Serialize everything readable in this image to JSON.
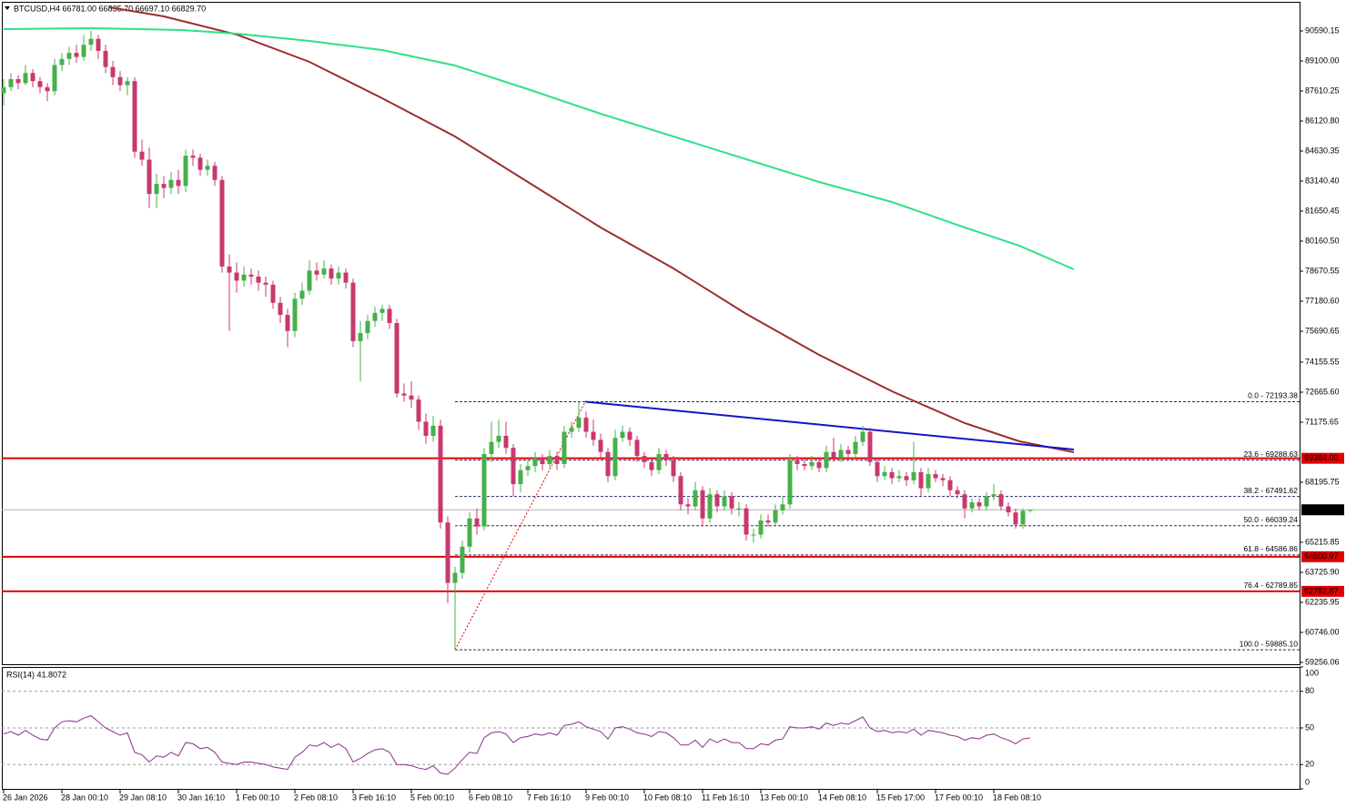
{
  "chart_data": [
    {
      "type": "candlestick",
      "title": "BTCUSD,H4  66781.00 66835.70 66697.10 66829.70",
      "up_color": "#46b04a",
      "down_color": "#c8386f",
      "xlim": [
        -0.25,
        178
      ],
      "ylim": [
        59166,
        91990
      ],
      "xticks": [
        {
          "value": 0,
          "label": "26 Jan 2026"
        },
        {
          "value": 8,
          "label": "28 Jan 00:10"
        },
        {
          "value": 16,
          "label": "29 Jan 08:10"
        },
        {
          "value": 24,
          "label": "30 Jan 16:10"
        },
        {
          "value": 32,
          "label": "1 Feb 00:10"
        },
        {
          "value": 40,
          "label": "2 Feb 08:10"
        },
        {
          "value": 48,
          "label": "3 Feb 16:10"
        },
        {
          "value": 56,
          "label": "5 Feb 00:10"
        },
        {
          "value": 64,
          "label": "6 Feb 08:10"
        },
        {
          "value": 72,
          "label": "7 Feb 16:10"
        },
        {
          "value": 80,
          "label": "9 Feb 00:10"
        },
        {
          "value": 88,
          "label": "10 Feb 08:10"
        },
        {
          "value": 96,
          "label": "11 Feb 16:10"
        },
        {
          "value": 104,
          "label": "13 Feb 00:10"
        },
        {
          "value": 112,
          "label": "14 Feb 08:10"
        },
        {
          "value": 120,
          "label": "15 Feb 17:00"
        },
        {
          "value": 128,
          "label": "17 Feb 00:10"
        },
        {
          "value": 136,
          "label": "18 Feb 08:10"
        }
      ],
      "yticks": [
        90590.15,
        {
          "value": 89100,
          "label": "89100.00"
        },
        87610.25,
        {
          "value": 86120.8,
          "label": "86120.80"
        },
        84630.35,
        {
          "value": 83140.4,
          "label": "83140.40"
        },
        81650.45,
        {
          "value": 80160.5,
          "label": "80160.50"
        },
        78670.55,
        {
          "value": 77180.6,
          "label": "77180.60"
        },
        75690.65,
        74155.55,
        {
          "value": 72665.6,
          "label": "72665.60"
        },
        71175.65,
        68195.75,
        65215.85,
        {
          "value": 63725.9,
          "label": "63725.90"
        },
        62235.95,
        {
          "value": 60746,
          "label": "60746.00"
        },
        59256.06
      ],
      "candles": [
        [
          87500,
          88200,
          86900,
          87800
        ],
        [
          87800,
          88500,
          87600,
          88200
        ],
        [
          88200,
          88400,
          87700,
          88000
        ],
        [
          88000,
          88900,
          87900,
          88500
        ],
        [
          88500,
          88700,
          87800,
          88100
        ],
        [
          88100,
          88300,
          87500,
          87800
        ],
        [
          87800,
          88000,
          87100,
          87600
        ],
        [
          87600,
          89200,
          87400,
          88900
        ],
        [
          88900,
          89500,
          88600,
          89200
        ],
        [
          89200,
          89800,
          88900,
          89500
        ],
        [
          89500,
          89900,
          89000,
          89300
        ],
        [
          89300,
          90400,
          89100,
          89900
        ],
        [
          89900,
          90600,
          89600,
          90200
        ],
        [
          90200,
          90400,
          89200,
          89600
        ],
        [
          89600,
          89900,
          88500,
          88800
        ],
        [
          88800,
          89100,
          87900,
          88300
        ],
        [
          88300,
          88600,
          87600,
          87900
        ],
        [
          87900,
          88300,
          87400,
          88100
        ],
        [
          88100,
          88300,
          84300,
          84600
        ],
        [
          84600,
          85200,
          83900,
          84200
        ],
        [
          84200,
          84800,
          81800,
          82500
        ],
        [
          82500,
          83500,
          81800,
          83000
        ],
        [
          83000,
          83400,
          82300,
          82800
        ],
        [
          82800,
          83600,
          82500,
          83200
        ],
        [
          83200,
          83700,
          82500,
          82900
        ],
        [
          82900,
          84700,
          82600,
          84400
        ],
        [
          84400,
          84700,
          83900,
          84300
        ],
        [
          84300,
          84500,
          83400,
          83700
        ],
        [
          83700,
          84200,
          83400,
          83900
        ],
        [
          83900,
          84100,
          82900,
          83200
        ],
        [
          83200,
          83400,
          78600,
          78900
        ],
        [
          78900,
          79500,
          75700,
          78600
        ],
        [
          78600,
          79100,
          77600,
          78200
        ],
        [
          78200,
          78900,
          77900,
          78500
        ],
        [
          78500,
          78800,
          78000,
          78400
        ],
        [
          78400,
          78700,
          77700,
          78100
        ],
        [
          78100,
          78400,
          77400,
          78000
        ],
        [
          78000,
          78200,
          76800,
          77100
        ],
        [
          77100,
          77400,
          76100,
          76500
        ],
        [
          76500,
          76800,
          74900,
          75700
        ],
        [
          75700,
          77600,
          75400,
          77300
        ],
        [
          77300,
          78100,
          77000,
          77700
        ],
        [
          77700,
          79200,
          77500,
          78700
        ],
        [
          78700,
          79100,
          78200,
          78500
        ],
        [
          78500,
          79200,
          78300,
          78800
        ],
        [
          78800,
          79000,
          78000,
          78300
        ],
        [
          78300,
          78900,
          78000,
          78600
        ],
        [
          78600,
          78800,
          77800,
          78100
        ],
        [
          78100,
          78300,
          74900,
          75200
        ],
        [
          75200,
          76200,
          73200,
          75600
        ],
        [
          75600,
          76500,
          75300,
          76200
        ],
        [
          76200,
          76900,
          75900,
          76600
        ],
        [
          76600,
          77000,
          76200,
          76800
        ],
        [
          76800,
          77000,
          75800,
          76100
        ],
        [
          76100,
          76300,
          72400,
          72600
        ],
        [
          72600,
          73100,
          72200,
          72500
        ],
        [
          72500,
          73200,
          71900,
          72300
        ],
        [
          72300,
          72500,
          70800,
          71200
        ],
        [
          71200,
          71600,
          70100,
          70500
        ],
        [
          70500,
          71500,
          70200,
          71000
        ],
        [
          71000,
          71300,
          65900,
          66200
        ],
        [
          66200,
          66500,
          62200,
          63200
        ],
        [
          63200,
          64000,
          59885.1,
          63700
        ],
        [
          63700,
          65300,
          63400,
          65000
        ],
        [
          65000,
          66700,
          64700,
          66400
        ],
        [
          66400,
          66900,
          65600,
          66000
        ],
        [
          66000,
          69900,
          65800,
          69600
        ],
        [
          69600,
          71200,
          69200,
          70200
        ],
        [
          70200,
          71300,
          69900,
          70500
        ],
        [
          70500,
          71200,
          69600,
          69900
        ],
        [
          69900,
          70100,
          67500,
          68100
        ],
        [
          68100,
          69100,
          67700,
          68800
        ],
        [
          68800,
          69300,
          68500,
          69000
        ],
        [
          69000,
          69700,
          68700,
          69400
        ],
        [
          69400,
          69600,
          68800,
          69100
        ],
        [
          69100,
          69800,
          68900,
          69500
        ],
        [
          69500,
          69700,
          68800,
          69100
        ],
        [
          69100,
          71000,
          68900,
          70700
        ],
        [
          70700,
          71200,
          70400,
          70900
        ],
        [
          70900,
          72193.38,
          70700,
          71400
        ],
        [
          71400,
          71700,
          70400,
          70700
        ],
        [
          70700,
          71300,
          70000,
          70300
        ],
        [
          70300,
          70600,
          69400,
          69700
        ],
        [
          69700,
          69900,
          68200,
          68500
        ],
        [
          68500,
          70800,
          68300,
          70400
        ],
        [
          70400,
          71000,
          70200,
          70700
        ],
        [
          70700,
          70900,
          70000,
          70300
        ],
        [
          70300,
          70500,
          69200,
          69500
        ],
        [
          69500,
          69700,
          68900,
          69200
        ],
        [
          69200,
          69400,
          68500,
          68800
        ],
        [
          68800,
          69900,
          68600,
          69600
        ],
        [
          69600,
          69800,
          69000,
          69300
        ],
        [
          69300,
          69500,
          68200,
          68500
        ],
        [
          68500,
          68700,
          66800,
          67100
        ],
        [
          67100,
          67400,
          66600,
          67000
        ],
        [
          67000,
          68200,
          66800,
          67800
        ],
        [
          67800,
          68000,
          66000,
          66400
        ],
        [
          66400,
          67900,
          66200,
          67600
        ],
        [
          67600,
          67800,
          66700,
          67000
        ],
        [
          67000,
          67800,
          66800,
          67500
        ],
        [
          67500,
          67700,
          66600,
          66900
        ],
        [
          66900,
          67200,
          66500,
          66900
        ],
        [
          66900,
          67100,
          65300,
          65600
        ],
        [
          65600,
          65900,
          65200,
          65600
        ],
        [
          65600,
          66600,
          65400,
          66300
        ],
        [
          66300,
          66600,
          66000,
          66200
        ],
        [
          66200,
          67100,
          66000,
          66800
        ],
        [
          66800,
          67500,
          66600,
          67100
        ],
        [
          67100,
          69600,
          66900,
          69300
        ],
        [
          69300,
          69500,
          68800,
          69100
        ],
        [
          69100,
          69300,
          68800,
          69000
        ],
        [
          69000,
          69500,
          68800,
          69200
        ],
        [
          69200,
          69400,
          68700,
          68900
        ],
        [
          68900,
          70000,
          68700,
          69700
        ],
        [
          69700,
          70400,
          69200,
          69400
        ],
        [
          69400,
          70100,
          69200,
          69800
        ],
        [
          69800,
          70000,
          69300,
          69600
        ],
        [
          69600,
          70500,
          69400,
          70200
        ],
        [
          70200,
          71000,
          70000,
          70700
        ],
        [
          70700,
          70900,
          69000,
          69200
        ],
        [
          69200,
          69400,
          68200,
          68500
        ],
        [
          68500,
          69000,
          68300,
          68700
        ],
        [
          68700,
          68900,
          68100,
          68400
        ],
        [
          68400,
          68800,
          68200,
          68500
        ],
        [
          68500,
          68700,
          68000,
          68300
        ],
        [
          68300,
          70200,
          68100,
          68700
        ],
        [
          68700,
          68900,
          67500,
          67900
        ],
        [
          67900,
          68900,
          67700,
          68600
        ],
        [
          68600,
          68800,
          68200,
          68400
        ],
        [
          68400,
          68600,
          68000,
          68300
        ],
        [
          68300,
          68500,
          67500,
          67800
        ],
        [
          67800,
          68000,
          67400,
          67600
        ],
        [
          67600,
          67800,
          66400,
          66900
        ],
        [
          66900,
          67400,
          66700,
          67200
        ],
        [
          67200,
          67400,
          66800,
          67000
        ],
        [
          67000,
          67700,
          66800,
          67500
        ],
        [
          67500,
          68100,
          67300,
          67600
        ],
        [
          67600,
          67800,
          66800,
          67000
        ],
        [
          67000,
          67200,
          66500,
          66700
        ],
        [
          66700,
          66900,
          65900,
          66100
        ],
        [
          66100,
          66900,
          65900,
          66781
        ],
        [
          66781,
          66835.7,
          66697.1,
          66829.7
        ]
      ],
      "series": [
        {
          "color": "#9b2d2d",
          "x": [
            14.5,
            22,
            32,
            42,
            52,
            62,
            72,
            82,
            92,
            102,
            112,
            122,
            132,
            139.5,
            147
          ],
          "values": [
            91764,
            91312,
            90409,
            89055,
            87249,
            85353,
            83095,
            80838,
            78806,
            76548,
            74517,
            72712,
            71130,
            70227,
            69685
          ]
        },
        {
          "color": "#2fe08a",
          "x": [
            0,
            12,
            24.5,
            32,
            42,
            52,
            62,
            72,
            82,
            92,
            102,
            112,
            122,
            132,
            139.5,
            147
          ],
          "values": [
            90680,
            90725,
            90635,
            90455,
            90093,
            89642,
            88874,
            87700,
            86481,
            85353,
            84224,
            83095,
            82102,
            80838,
            79935,
            78761
          ]
        }
      ],
      "trendline": {
        "color": "#1414c8",
        "x": [
          79.9,
          147
        ],
        "values": [
          72193.38,
          69820
        ]
      },
      "fib": {
        "color": "#e00000",
        "x": [
          62,
          79.9
        ],
        "values": [
          59885.1,
          72193.38
        ],
        "levels": [
          {
            "value": 72193.38,
            "label": "0.0 - 72193.38"
          },
          {
            "value": 69288.63,
            "label": "23.6 - 69288.63"
          },
          {
            "value": 67491.62,
            "label": "38.2 - 67491.62"
          },
          {
            "value": 66039.24,
            "label": "50.0 - 66039.24"
          },
          {
            "value": 64586.86,
            "label": "61.8 - 64586.86"
          },
          {
            "value": 62789.85,
            "label": "76.4 - 62789.85"
          },
          {
            "value": 59885.1,
            "label": "100.0 - 59885.10"
          }
        ]
      },
      "levels": {
        "color": "#e00000",
        "items": [
          {
            "value": 69384,
            "label": "69384.00"
          },
          {
            "value": 64500.97,
            "label": "64500.97"
          },
          {
            "value": 62782.87,
            "label": "62782.87"
          }
        ]
      },
      "current_price": {
        "value": 66829.7,
        "label": "66829.70",
        "color": "#b0b0b0"
      }
    },
    {
      "type": "line",
      "title": "RSI(14) 41.8072",
      "color": "#8b2f8b",
      "ylim": [
        0,
        100
      ],
      "yticks": [
        0,
        20,
        50,
        80,
        100
      ],
      "values": [
        45,
        47,
        44,
        48,
        44,
        41,
        40,
        50,
        55,
        56,
        55,
        58,
        60,
        55,
        50,
        47,
        44,
        46,
        30,
        28,
        22,
        27,
        26,
        30,
        27,
        38,
        37,
        33,
        34,
        30,
        22,
        21,
        20,
        22,
        22,
        21,
        20,
        18,
        17,
        16,
        26,
        30,
        36,
        35,
        38,
        34,
        37,
        33,
        22,
        25,
        29,
        32,
        33,
        30,
        20,
        20,
        19,
        17,
        16,
        19,
        13,
        12,
        17,
        24,
        30,
        29,
        42,
        46,
        47,
        45,
        38,
        42,
        43,
        45,
        44,
        46,
        44,
        52,
        53,
        55,
        51,
        49,
        47,
        41,
        50,
        51,
        49,
        46,
        45,
        43,
        47,
        46,
        42,
        36,
        36,
        40,
        34,
        41,
        38,
        41,
        38,
        38,
        33,
        33,
        37,
        36,
        40,
        41,
        51,
        50,
        50,
        51,
        49,
        54,
        52,
        54,
        53,
        56,
        59,
        50,
        47,
        48,
        46,
        47,
        46,
        49,
        44,
        48,
        47,
        46,
        44,
        43,
        40,
        42,
        41,
        44,
        45,
        42,
        40,
        37,
        41,
        41.8072
      ]
    }
  ]
}
